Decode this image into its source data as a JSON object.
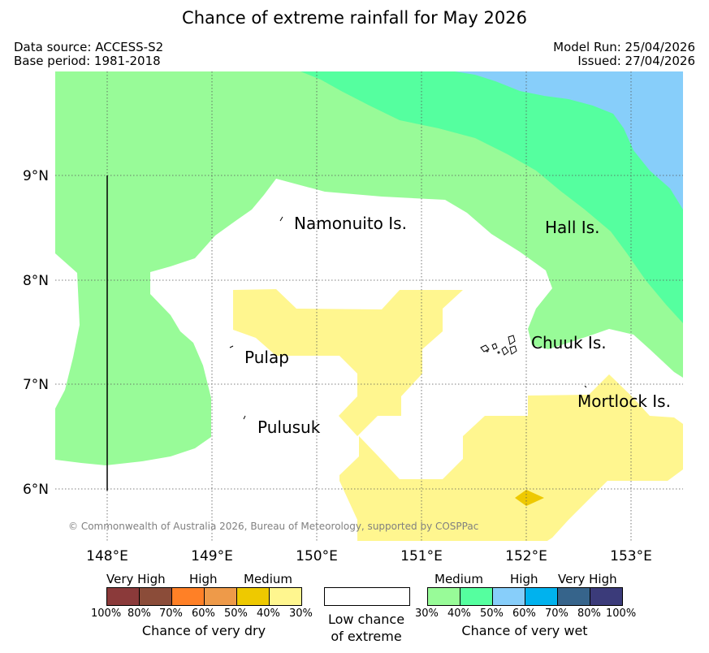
{
  "header": {
    "title": "Chance of extreme rainfall for May 2026",
    "data_source": "Data source: ACCESS-S2",
    "base_period": "Base period: 1981-2018",
    "model_run": "Model Run: 25/04/2026",
    "issued": "Issued: 27/04/2026"
  },
  "map": {
    "lat_labels": [
      "9°N",
      "8°N",
      "7°N",
      "6°N"
    ],
    "lon_labels": [
      "148°E",
      "149°E",
      "150°E",
      "151°E",
      "152°E",
      "153°E"
    ],
    "places": [
      "Namonuito Is.",
      "Hall Is.",
      "Pulap",
      "Chuuk Is.",
      "Pulusuk",
      "Mortlock Is."
    ],
    "credit": "© Commonwealth of Australia 2026, Bureau of Meteorology, supported by COSPPac",
    "colors": {
      "wet_30_40": "#98fb98",
      "wet_40_50": "#55ff9f",
      "wet_50_60": "#87cefa",
      "dry_30_40": "#fff68f",
      "dry_40_50": "#eec900"
    }
  },
  "legend": {
    "dry": {
      "categories": [
        "Very High",
        "High",
        "Medium"
      ],
      "ticks": [
        "100%",
        "80%",
        "70%",
        "60%",
        "50%",
        "40%",
        "30%"
      ],
      "colors": [
        "#8b3a3a",
        "#8b4c39",
        "#ff8026",
        "#ee9a49",
        "#eec900",
        "#fff68f"
      ],
      "caption": "Chance of very dry"
    },
    "neutral": {
      "line1": "Low chance",
      "line2": "of extreme"
    },
    "wet": {
      "categories": [
        "Medium",
        "High",
        "Very High"
      ],
      "ticks": [
        "30%",
        "40%",
        "50%",
        "60%",
        "70%",
        "80%",
        "100%"
      ],
      "colors": [
        "#98fb98",
        "#55ff9f",
        "#87cefa",
        "#00b2ee",
        "#36648b",
        "#3b3b7a"
      ],
      "caption": "Chance of very wet"
    }
  }
}
